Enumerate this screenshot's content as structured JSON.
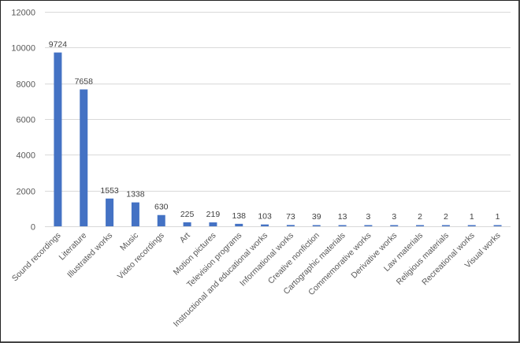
{
  "chart_data": {
    "type": "bar",
    "title": "",
    "xlabel": "",
    "ylabel": "",
    "ylim": [
      0,
      12000
    ],
    "yticks": [
      0,
      2000,
      4000,
      6000,
      8000,
      10000,
      12000
    ],
    "grid": true,
    "legend": null,
    "bar_color": "#4472c4",
    "categories": [
      "Sound recordings",
      "Literature",
      "Illustrated works",
      "Music",
      "Video recordings",
      "Art",
      "Motion pictures",
      "Television programs",
      "Instructional and educational works",
      "Informational works",
      "Creative nonfiction",
      "Cartographic materials",
      "Commemorative works",
      "Derivative works",
      "Law materials",
      "Religious materials",
      "Recreational works",
      "Visual works"
    ],
    "values": [
      9724,
      7658,
      1553,
      1338,
      630,
      225,
      219,
      138,
      103,
      73,
      39,
      13,
      3,
      3,
      2,
      2,
      1,
      1
    ]
  }
}
